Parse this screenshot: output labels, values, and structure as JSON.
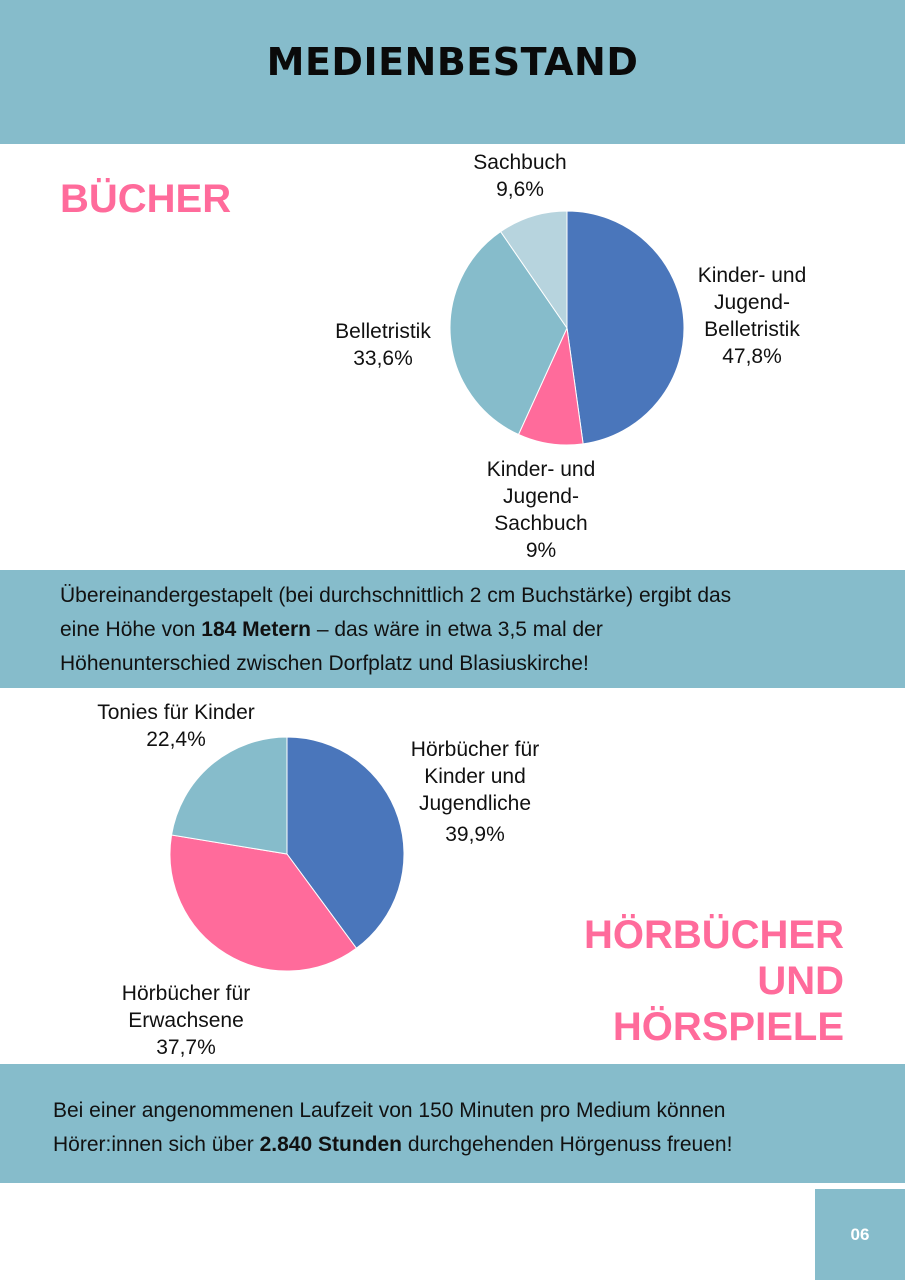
{
  "header": {
    "title": "MEDIENBESTAND"
  },
  "books_section": {
    "title": "BÜCHER"
  },
  "audio_section": {
    "title_lines": [
      "HÖRBÜCHER",
      "UND",
      "HÖRSPIELE"
    ]
  },
  "info1": {
    "line1": "Übereinandergestapelt (bei durchschnittlich 2 cm Buchstärke) ergibt das",
    "line2_pre": "eine Höhe von ",
    "line2_bold": "184 Metern",
    "line2_post": " – das wäre in etwa 3,5 mal der",
    "line3": "Höhenunterschied zwischen Dorfplatz und Blasiuskirche!"
  },
  "info2": {
    "line1": "Bei einer angenommenen Laufzeit von 150 Minuten pro Medium können",
    "line2_pre": "Hörer:innen sich über ",
    "line2_bold": "2.840 Stunden",
    "line2_post": " durchgehenden Hörgenuss freuen!"
  },
  "footer": {
    "page_number": "06"
  },
  "colors": {
    "band": "#86bccb",
    "accent_pink": "#ff6b9b",
    "blue": "#4a76bb",
    "pink": "#ff6b9b",
    "teal": "#86bccb",
    "light": "#b7d4de"
  },
  "chart_data": [
    {
      "type": "pie",
      "slices": [
        {
          "label_lines": [
            "Kinder- und",
            "Jugend-",
            "Belletristik"
          ],
          "value": 47.8,
          "value_label": "47,8%",
          "color": "#4a76bb"
        },
        {
          "label_lines": [
            "Kinder- und",
            "Jugend-",
            "Sachbuch"
          ],
          "value": 9,
          "value_label": "9%",
          "color": "#ff6b9b"
        },
        {
          "label_lines": [
            "Belletristik"
          ],
          "value": 33.6,
          "value_label": "33,6%",
          "color": "#86bccb"
        },
        {
          "label_lines": [
            "Sachbuch"
          ],
          "value": 9.6,
          "value_label": "9,6%",
          "color": "#b7d4de"
        }
      ]
    },
    {
      "type": "pie",
      "slices": [
        {
          "label_lines": [
            "Hörbücher für",
            "Kinder und",
            "Jugendliche"
          ],
          "value": 39.9,
          "value_label": "39,9%",
          "color": "#4a76bb"
        },
        {
          "label_lines": [
            "Hörbücher für",
            "Erwachsene"
          ],
          "value": 37.7,
          "value_label": "37,7%",
          "color": "#ff6b9b"
        },
        {
          "label_lines": [
            "Tonies für Kinder"
          ],
          "value": 22.4,
          "value_label": "22,4%",
          "color": "#86bccb"
        }
      ]
    }
  ]
}
